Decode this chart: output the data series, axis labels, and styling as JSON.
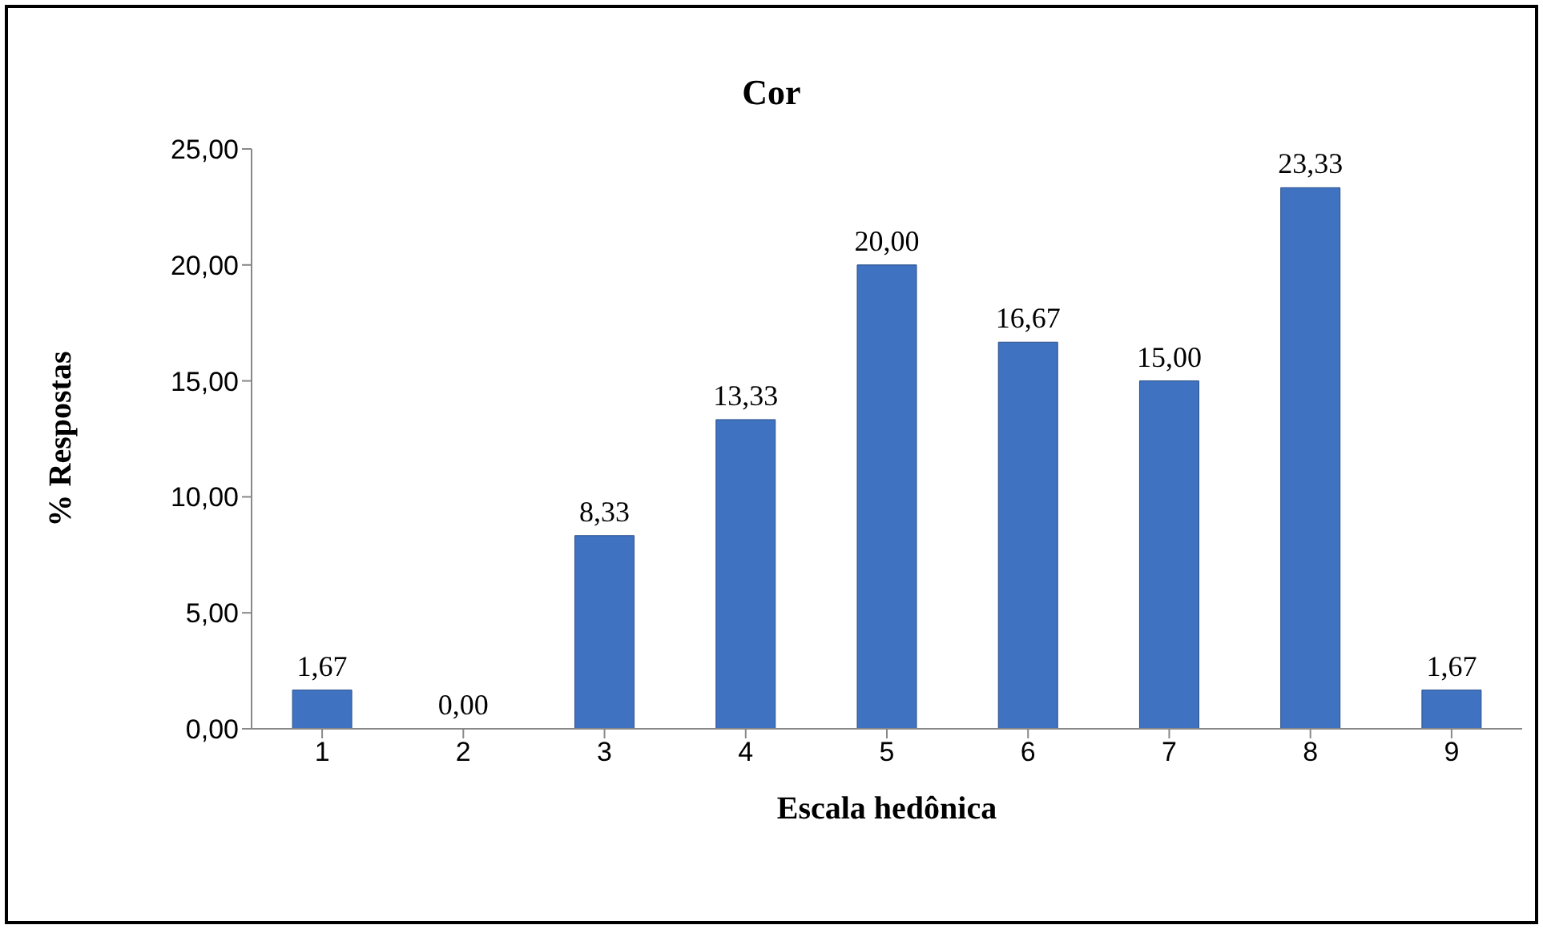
{
  "chart_data": {
    "type": "bar",
    "title": "Cor",
    "xlabel": "Escala hedônica",
    "ylabel": "% Respostas",
    "categories": [
      "1",
      "2",
      "3",
      "4",
      "5",
      "6",
      "7",
      "8",
      "9"
    ],
    "values": [
      1.67,
      0,
      8.33,
      13.33,
      20,
      16.67,
      15,
      23.33,
      1.67
    ],
    "value_labels": [
      "1,67",
      "0,00",
      "8,33",
      "13,33",
      "20,00",
      "16,67",
      "15,00",
      "23,33",
      "1,67"
    ],
    "color": "#3f72c0",
    "ylim": [
      0,
      25
    ],
    "yticks": [
      {
        "value": 0,
        "label": "0,00"
      },
      {
        "value": 5,
        "label": "5,00"
      },
      {
        "value": 10,
        "label": "10,00"
      },
      {
        "value": 15,
        "label": "15,00"
      },
      {
        "value": 20,
        "label": "20,00"
      },
      {
        "value": 25,
        "label": "25,00"
      }
    ],
    "grid": false,
    "legend": false
  }
}
